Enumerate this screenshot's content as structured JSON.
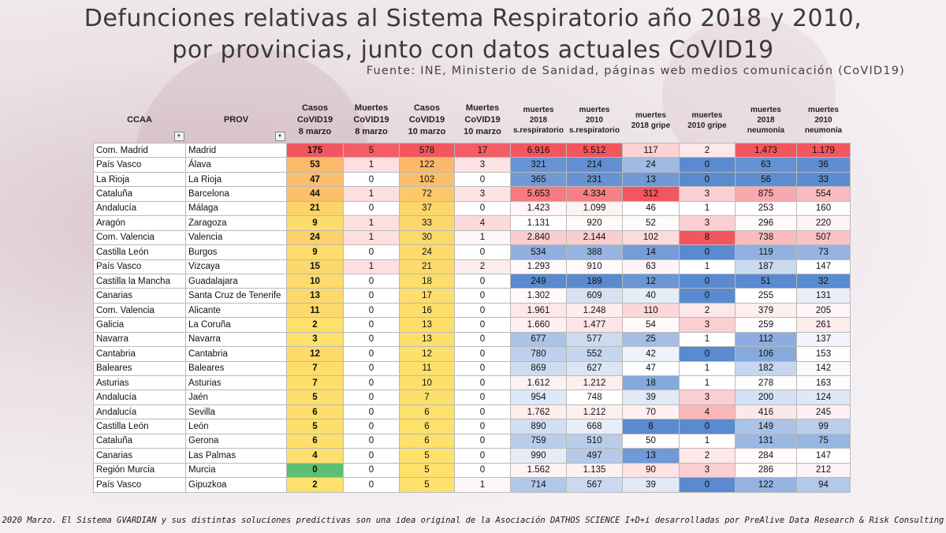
{
  "title": {
    "line1": "Defunciones relativas al Sistema Respiratorio año 2018 y 2010,",
    "line2": "por provincias, junto con datos actuales CoVID19"
  },
  "subtitle": "Fuente: INE, Ministerio de Sanidad, páginas web medios comunicación (CoVID19)",
  "footer": "2020 Marzo. El Sistema GVARDIAN y sus distintas soluciones predictivas son una idea original de la Asociación DATHOS SCIENCE I+D+i desarrolladas por PreAlive Data Research & Risk Consulting",
  "filter_icon": "▼",
  "chart_data": {
    "type": "table",
    "columns": [
      {
        "key": "ccaa",
        "label": [
          "CCAA"
        ],
        "filter": true
      },
      {
        "key": "prov",
        "label": [
          "PROV"
        ],
        "filter": true
      },
      {
        "key": "casos8",
        "label": [
          "Casos",
          "CoVID19",
          "8 marzo"
        ]
      },
      {
        "key": "muertes8",
        "label": [
          "Muertes",
          "CoVID19",
          "8 marzo"
        ]
      },
      {
        "key": "casos10",
        "label": [
          "Casos",
          "CoVID19",
          "10 marzo"
        ]
      },
      {
        "key": "muertes10",
        "label": [
          "Muertes",
          "CoVID19",
          "10 marzo"
        ]
      },
      {
        "key": "resp2018",
        "label": [
          "muertes",
          "2018",
          "s.respiratorio"
        ]
      },
      {
        "key": "resp2010",
        "label": [
          "muertes",
          "2010",
          "s.respiratorio"
        ]
      },
      {
        "key": "gripe2018",
        "label": [
          "muertes",
          "2018 gripe"
        ]
      },
      {
        "key": "gripe2010",
        "label": [
          "muertes",
          "2010 gripe"
        ]
      },
      {
        "key": "neum2018",
        "label": [
          "muertes",
          "2018",
          "neumonía"
        ]
      },
      {
        "key": "neum2010",
        "label": [
          "muertes",
          "2010",
          "neumonía"
        ]
      }
    ],
    "rows": [
      [
        "Com. Madrid",
        "Madrid",
        "175",
        "5",
        "578",
        "17",
        "6.916",
        "5.512",
        "117",
        "2",
        "1.473",
        "1.179"
      ],
      [
        "País Vasco",
        "Álava",
        "53",
        "1",
        "122",
        "3",
        "321",
        "214",
        "24",
        "0",
        "63",
        "36"
      ],
      [
        "La Rioja",
        "La Rioja",
        "47",
        "0",
        "102",
        "0",
        "365",
        "231",
        "13",
        "0",
        "56",
        "33"
      ],
      [
        "Cataluña",
        "Barcelona",
        "44",
        "1",
        "72",
        "3",
        "5.653",
        "4.334",
        "312",
        "3",
        "875",
        "554"
      ],
      [
        "Andalucía",
        "Málaga",
        "21",
        "0",
        "37",
        "0",
        "1.423",
        "1.099",
        "46",
        "1",
        "253",
        "160"
      ],
      [
        "Aragón",
        "Zaragoza",
        "9",
        "1",
        "33",
        "4",
        "1.131",
        "920",
        "52",
        "3",
        "296",
        "220"
      ],
      [
        "Com. Valencia",
        "Valencia",
        "24",
        "1",
        "30",
        "1",
        "2.840",
        "2.144",
        "102",
        "8",
        "738",
        "507"
      ],
      [
        "Castilla León",
        "Burgos",
        "9",
        "0",
        "24",
        "0",
        "534",
        "388",
        "14",
        "0",
        "119",
        "73"
      ],
      [
        "País Vasco",
        "Vizcaya",
        "15",
        "1",
        "21",
        "2",
        "1.293",
        "910",
        "63",
        "1",
        "187",
        "147"
      ],
      [
        "Castilla la Mancha",
        "Guadalajara",
        "10",
        "0",
        "18",
        "0",
        "249",
        "189",
        "12",
        "0",
        "51",
        "32"
      ],
      [
        "Canarias",
        "Santa Cruz de Tenerife",
        "13",
        "0",
        "17",
        "0",
        "1.302",
        "609",
        "40",
        "0",
        "255",
        "131"
      ],
      [
        "Com. Valencia",
        "Alicante",
        "11",
        "0",
        "16",
        "0",
        "1.961",
        "1.248",
        "110",
        "2",
        "379",
        "205"
      ],
      [
        "Galicia",
        "La Coruña",
        "2",
        "0",
        "13",
        "0",
        "1.660",
        "1.477",
        "54",
        "3",
        "259",
        "261"
      ],
      [
        "Navarra",
        "Navarra",
        "3",
        "0",
        "13",
        "0",
        "677",
        "577",
        "25",
        "1",
        "112",
        "137"
      ],
      [
        "Cantabria",
        "Cantabria",
        "12",
        "0",
        "12",
        "0",
        "780",
        "552",
        "42",
        "0",
        "106",
        "153"
      ],
      [
        "Baleares",
        "Baleares",
        "7",
        "0",
        "11",
        "0",
        "869",
        "627",
        "47",
        "1",
        "182",
        "142"
      ],
      [
        "Asturias",
        "Asturias",
        "7",
        "0",
        "10",
        "0",
        "1.612",
        "1.212",
        "18",
        "1",
        "278",
        "163"
      ],
      [
        "Andalucía",
        "Jaén",
        "5",
        "0",
        "7",
        "0",
        "954",
        "748",
        "39",
        "3",
        "200",
        "124"
      ],
      [
        "Andalucía",
        "Sevilla",
        "6",
        "0",
        "6",
        "0",
        "1.762",
        "1.212",
        "70",
        "4",
        "416",
        "245"
      ],
      [
        "Castilla León",
        "León",
        "5",
        "0",
        "6",
        "0",
        "890",
        "668",
        "8",
        "0",
        "149",
        "99"
      ],
      [
        "Cataluña",
        "Gerona",
        "6",
        "0",
        "6",
        "0",
        "759",
        "510",
        "50",
        "1",
        "131",
        "75"
      ],
      [
        "Canarias",
        "Las Palmas",
        "4",
        "0",
        "5",
        "0",
        "990",
        "497",
        "13",
        "2",
        "284",
        "147"
      ],
      [
        "Región Murcia",
        "Murcia",
        "0",
        "0",
        "5",
        "0",
        "1.562",
        "1.135",
        "90",
        "3",
        "286",
        "212"
      ],
      [
        "País Vasco",
        "Gipuzkoa",
        "2",
        "0",
        "5",
        "1",
        "714",
        "567",
        "39",
        "0",
        "122",
        "94"
      ]
    ],
    "heatmap_scale": {
      "low": "#5a8ad0",
      "mid": "#ffffff",
      "high": "#f2565e"
    },
    "casos_scale": {
      "low": "#5cbf73",
      "mid": "#fde36b",
      "high": "#f2565e"
    }
  }
}
